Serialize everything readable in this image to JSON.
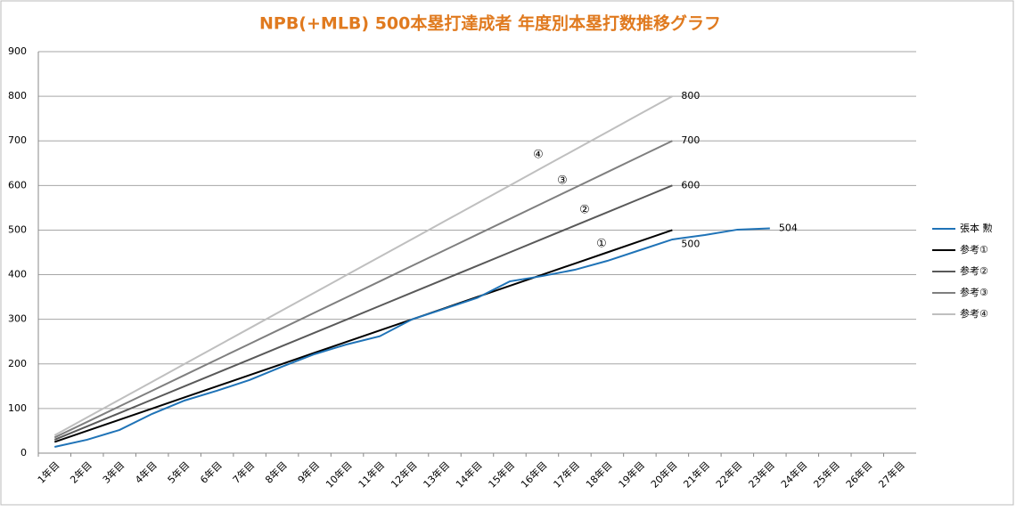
{
  "chart_data": {
    "type": "line",
    "title": "NPB(+MLB) 500本塁打達成者 年度別本塁打数推移グラフ",
    "categories": [
      "1年目",
      "2年目",
      "3年目",
      "4年目",
      "5年目",
      "6年目",
      "7年目",
      "8年目",
      "9年目",
      "10年目",
      "11年目",
      "12年目",
      "13年目",
      "14年目",
      "15年目",
      "16年目",
      "17年目",
      "18年目",
      "19年目",
      "20年目",
      "21年目",
      "22年目",
      "23年目",
      "24年目",
      "25年目",
      "26年目",
      "27年目"
    ],
    "series": [
      {
        "name": "張本 勲",
        "color": "#1f73b7",
        "values": [
          14,
          30,
          52,
          88,
          118,
          140,
          164,
          194,
          222,
          244,
          262,
          300,
          324,
          348,
          385,
          397,
          411,
          431,
          455,
          479,
          489,
          501,
          504,
          null,
          null,
          null,
          null
        ]
      },
      {
        "name": "参考①",
        "color": "#000000",
        "values": [
          25,
          50,
          75,
          100,
          125,
          150,
          175,
          200,
          225,
          250,
          275,
          300,
          325,
          350,
          375,
          400,
          425,
          450,
          475,
          500,
          null,
          null,
          null,
          null,
          null,
          null,
          null
        ]
      },
      {
        "name": "参考②",
        "color": "#595959",
        "values": [
          30,
          60,
          90,
          120,
          150,
          180,
          210,
          240,
          270,
          300,
          330,
          360,
          390,
          420,
          450,
          480,
          510,
          540,
          570,
          600,
          null,
          null,
          null,
          null,
          null,
          null,
          null
        ]
      },
      {
        "name": "参考③",
        "color": "#7f7f7f",
        "values": [
          35,
          70,
          105,
          140,
          175,
          210,
          245,
          280,
          315,
          350,
          385,
          420,
          455,
          490,
          525,
          560,
          595,
          630,
          665,
          700,
          null,
          null,
          null,
          null,
          null,
          null,
          null
        ]
      },
      {
        "name": "参考④",
        "color": "#bfbfbf",
        "values": [
          40,
          80,
          120,
          160,
          200,
          240,
          280,
          320,
          360,
          400,
          440,
          480,
          520,
          560,
          600,
          640,
          680,
          720,
          760,
          800,
          null,
          null,
          null,
          null,
          null,
          null,
          null
        ]
      }
    ],
    "annotations": [
      "①",
      "②",
      "③",
      "④"
    ],
    "ylim": [
      0,
      900
    ],
    "yticks": [
      0,
      100,
      200,
      300,
      400,
      500,
      600,
      700,
      800,
      900
    ],
    "grid": true,
    "legend": "right"
  }
}
